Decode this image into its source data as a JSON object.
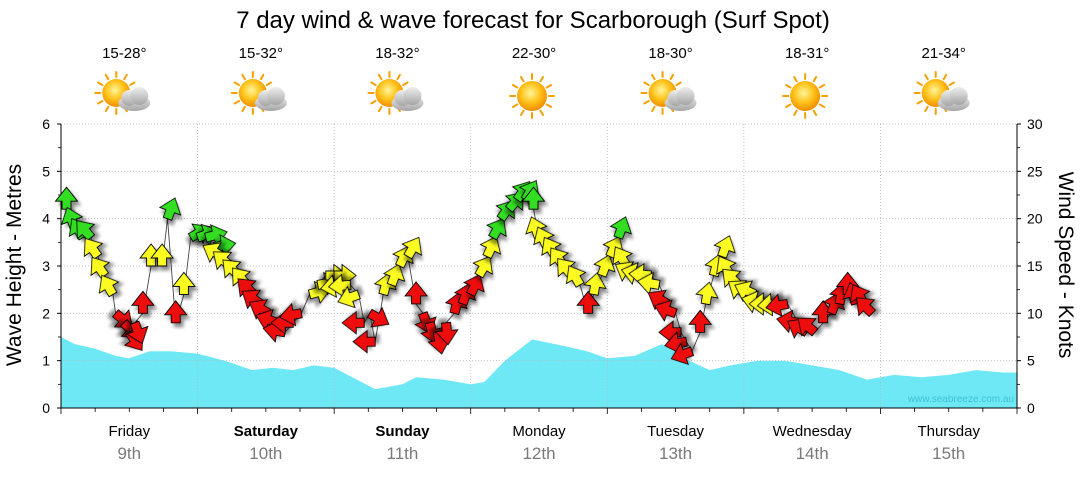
{
  "chart_data": {
    "type": "line",
    "title": "7 day wind & wave forecast for Scarborough (Surf Spot)",
    "y_left_label": "Wave Height - Metres",
    "y_right_label": "Wind Speed - Knots",
    "y_left_range": [
      0,
      6
    ],
    "y_right_range": [
      0,
      30
    ],
    "y_left_ticks": [
      "0",
      "1",
      "2",
      "3",
      "4",
      "5",
      "6"
    ],
    "y_right_ticks": [
      "0",
      "5",
      "10",
      "15",
      "20",
      "25",
      "30"
    ],
    "grid": true,
    "watermark": "www.seabreeze.com.au",
    "days": [
      {
        "day": "Friday",
        "date": "9th",
        "bold": false,
        "temp": "15-28°",
        "weather": "partly-cloudy"
      },
      {
        "day": "Saturday",
        "date": "10th",
        "bold": true,
        "temp": "15-32°",
        "weather": "partly-cloudy"
      },
      {
        "day": "Sunday",
        "date": "11th",
        "bold": true,
        "temp": "18-32°",
        "weather": "partly-cloudy"
      },
      {
        "day": "Monday",
        "date": "12th",
        "bold": false,
        "temp": "22-30°",
        "weather": "sunny"
      },
      {
        "day": "Tuesday",
        "date": "13th",
        "bold": false,
        "temp": "18-30°",
        "weather": "partly-cloudy"
      },
      {
        "day": "Wednesday",
        "date": "14th",
        "bold": false,
        "temp": "18-31°",
        "weather": "sunny"
      },
      {
        "day": "Thursday",
        "date": "15th",
        "bold": false,
        "temp": "21-34°",
        "weather": "partly-cloudy"
      }
    ],
    "wave": {
      "name": "Wave Height",
      "color": "#6fe8f5",
      "t": [
        0,
        0.1,
        0.25,
        0.4,
        0.5,
        0.65,
        0.8,
        1.0,
        1.2,
        1.4,
        1.55,
        1.7,
        1.85,
        2.0,
        2.1,
        2.3,
        2.5,
        2.6,
        2.8,
        3.0,
        3.1,
        3.25,
        3.45,
        3.7,
        3.85,
        4.0,
        4.2,
        4.4,
        4.6,
        4.75,
        4.9,
        5.1,
        5.3,
        5.5,
        5.7,
        5.9,
        6.1,
        6.3,
        6.5,
        6.7,
        6.9,
        7.0
      ],
      "values": [
        1.5,
        1.35,
        1.25,
        1.1,
        1.05,
        1.2,
        1.2,
        1.15,
        1.0,
        0.8,
        0.85,
        0.8,
        0.9,
        0.85,
        0.7,
        0.4,
        0.5,
        0.65,
        0.6,
        0.5,
        0.55,
        1.0,
        1.45,
        1.3,
        1.2,
        1.05,
        1.1,
        1.35,
        1.0,
        0.8,
        0.9,
        1.0,
        1.0,
        0.9,
        0.8,
        0.6,
        0.7,
        0.65,
        0.7,
        0.8,
        0.75,
        0.75
      ]
    },
    "wind": {
      "name": "Wind Speed",
      "colors": {
        "green": "#33dd22",
        "yellow": "#fbfb22",
        "red": "#ee1111"
      },
      "points": [
        {
          "t": 0.04,
          "v": 21,
          "dir": 0,
          "c": "green"
        },
        {
          "t": 0.1,
          "v": 19,
          "dir": -20,
          "c": "green"
        },
        {
          "t": 0.16,
          "v": 18,
          "dir": -30,
          "c": "green"
        },
        {
          "t": 0.22,
          "v": 18,
          "dir": -40,
          "c": "green"
        },
        {
          "t": 0.27,
          "v": 16,
          "dir": -35,
          "c": "yellow"
        },
        {
          "t": 0.32,
          "v": 14,
          "dir": -35,
          "c": "yellow"
        },
        {
          "t": 0.38,
          "v": 12,
          "dir": -30,
          "c": "yellow"
        },
        {
          "t": 0.4,
          "v": 10,
          "dir": 130,
          "c": "red"
        },
        {
          "t": 0.46,
          "v": 9,
          "dir": 135,
          "c": "red"
        },
        {
          "t": 0.5,
          "v": 8,
          "dir": 145,
          "c": "red"
        },
        {
          "t": 0.54,
          "v": 9,
          "dir": 160,
          "c": "red"
        },
        {
          "t": 0.6,
          "v": 10,
          "dir": 0,
          "c": "red"
        },
        {
          "t": 0.66,
          "v": 15,
          "dir": 0,
          "c": "yellow"
        },
        {
          "t": 0.74,
          "v": 15,
          "dir": 0,
          "c": "yellow"
        },
        {
          "t": 0.78,
          "v": 20,
          "dir": 20,
          "c": "green"
        },
        {
          "t": 0.84,
          "v": 9,
          "dir": 0,
          "c": "red"
        },
        {
          "t": 0.9,
          "v": 12,
          "dir": 0,
          "c": "yellow"
        },
        {
          "t": 0.95,
          "v": 18,
          "dir": 60,
          "c": "green"
        },
        {
          "t": 1.0,
          "v": 18,
          "dir": 70,
          "c": "green"
        },
        {
          "t": 1.06,
          "v": 18,
          "dir": 75,
          "c": "green"
        },
        {
          "t": 1.12,
          "v": 17,
          "dir": 80,
          "c": "green"
        },
        {
          "t": 1.18,
          "v": 16,
          "dir": -60,
          "c": "yellow"
        },
        {
          "t": 1.24,
          "v": 15,
          "dir": -50,
          "c": "yellow"
        },
        {
          "t": 1.3,
          "v": 14,
          "dir": -45,
          "c": "yellow"
        },
        {
          "t": 1.36,
          "v": 13,
          "dir": -40,
          "c": "yellow"
        },
        {
          "t": 1.41,
          "v": 12,
          "dir": -45,
          "c": "red"
        },
        {
          "t": 1.46,
          "v": 11,
          "dir": -55,
          "c": "red"
        },
        {
          "t": 1.52,
          "v": 10,
          "dir": -60,
          "c": "red"
        },
        {
          "t": 1.58,
          "v": 9,
          "dir": -70,
          "c": "red"
        },
        {
          "t": 1.64,
          "v": 8,
          "dir": -80,
          "c": "red"
        },
        {
          "t": 1.7,
          "v": 9,
          "dir": -90,
          "c": "red"
        },
        {
          "t": 1.76,
          "v": 10,
          "dir": -100,
          "c": "red"
        },
        {
          "t": 1.82,
          "v": 12,
          "dir": 75,
          "c": "yellow"
        },
        {
          "t": 1.88,
          "v": 13,
          "dir": 80,
          "c": "yellow"
        },
        {
          "t": 1.94,
          "v": 14,
          "dir": 90,
          "c": "yellow"
        },
        {
          "t": 2.0,
          "v": 14,
          "dir": 90,
          "c": "yellow"
        },
        {
          "t": 2.06,
          "v": 13,
          "dir": -100,
          "c": "yellow"
        },
        {
          "t": 2.12,
          "v": 13,
          "dir": -95,
          "c": "yellow"
        },
        {
          "t": 2.18,
          "v": 12,
          "dir": -110,
          "c": "yellow"
        },
        {
          "t": 2.22,
          "v": 9,
          "dir": -90,
          "c": "red"
        },
        {
          "t": 2.26,
          "v": 10,
          "dir": 120,
          "c": "red"
        },
        {
          "t": 2.3,
          "v": 7,
          "dir": -90,
          "c": "red"
        },
        {
          "t": 2.36,
          "v": 12,
          "dir": 15,
          "c": "yellow"
        },
        {
          "t": 2.42,
          "v": 13,
          "dir": 20,
          "c": "yellow"
        },
        {
          "t": 2.48,
          "v": 15,
          "dir": 25,
          "c": "yellow"
        },
        {
          "t": 2.54,
          "v": 16,
          "dir": 30,
          "c": "yellow"
        },
        {
          "t": 2.6,
          "v": 11,
          "dir": 0,
          "c": "red"
        },
        {
          "t": 2.65,
          "v": 10,
          "dir": 160,
          "c": "red"
        },
        {
          "t": 2.7,
          "v": 9,
          "dir": 165,
          "c": "red"
        },
        {
          "t": 2.76,
          "v": 8,
          "dir": 170,
          "c": "red"
        },
        {
          "t": 2.82,
          "v": 9,
          "dir": 175,
          "c": "red"
        },
        {
          "t": 2.88,
          "v": 10,
          "dir": 15,
          "c": "red"
        },
        {
          "t": 2.94,
          "v": 11,
          "dir": 20,
          "c": "red"
        },
        {
          "t": 3.0,
          "v": 12,
          "dir": 25,
          "c": "red"
        },
        {
          "t": 3.06,
          "v": 14,
          "dir": 30,
          "c": "yellow"
        },
        {
          "t": 3.12,
          "v": 16,
          "dir": 25,
          "c": "yellow"
        },
        {
          "t": 3.16,
          "v": 18,
          "dir": 30,
          "c": "green"
        },
        {
          "t": 3.22,
          "v": 20,
          "dir": 35,
          "c": "green"
        },
        {
          "t": 3.28,
          "v": 21,
          "dir": 40,
          "c": "green"
        },
        {
          "t": 3.34,
          "v": 22,
          "dir": 35,
          "c": "green"
        },
        {
          "t": 3.4,
          "v": 22,
          "dir": 30,
          "c": "green"
        },
        {
          "t": 3.46,
          "v": 21,
          "dir": 0,
          "c": "green"
        },
        {
          "t": 3.5,
          "v": 18,
          "dir": -20,
          "c": "yellow"
        },
        {
          "t": 3.56,
          "v": 17,
          "dir": -25,
          "c": "yellow"
        },
        {
          "t": 3.62,
          "v": 16,
          "dir": -30,
          "c": "yellow"
        },
        {
          "t": 3.68,
          "v": 15,
          "dir": -35,
          "c": "yellow"
        },
        {
          "t": 3.74,
          "v": 14,
          "dir": -40,
          "c": "yellow"
        },
        {
          "t": 3.8,
          "v": 13,
          "dir": -30,
          "c": "yellow"
        },
        {
          "t": 3.86,
          "v": 10,
          "dir": 0,
          "c": "red"
        },
        {
          "t": 3.9,
          "v": 12,
          "dir": 10,
          "c": "yellow"
        },
        {
          "t": 3.96,
          "v": 14,
          "dir": 20,
          "c": "yellow"
        },
        {
          "t": 4.02,
          "v": 16,
          "dir": 25,
          "c": "yellow"
        },
        {
          "t": 4.08,
          "v": 18,
          "dir": 20,
          "c": "green"
        },
        {
          "t": 4.14,
          "v": 15,
          "dir": -30,
          "c": "yellow"
        },
        {
          "t": 4.2,
          "v": 14,
          "dir": -60,
          "c": "yellow"
        },
        {
          "t": 4.26,
          "v": 14,
          "dir": -75,
          "c": "yellow"
        },
        {
          "t": 4.32,
          "v": 14,
          "dir": -85,
          "c": "yellow"
        },
        {
          "t": 4.38,
          "v": 13,
          "dir": -80,
          "c": "yellow"
        },
        {
          "t": 4.44,
          "v": 11,
          "dir": -60,
          "c": "red"
        },
        {
          "t": 4.5,
          "v": 10,
          "dir": -70,
          "c": "red"
        },
        {
          "t": 4.54,
          "v": 8,
          "dir": -90,
          "c": "red"
        },
        {
          "t": 4.58,
          "v": 7,
          "dir": -100,
          "c": "red"
        },
        {
          "t": 4.62,
          "v": 6,
          "dir": -110,
          "c": "red"
        },
        {
          "t": 4.68,
          "v": 8,
          "dir": 0,
          "c": "red"
        },
        {
          "t": 4.72,
          "v": 11,
          "dir": 10,
          "c": "yellow"
        },
        {
          "t": 4.78,
          "v": 14,
          "dir": 15,
          "c": "yellow"
        },
        {
          "t": 4.84,
          "v": 16,
          "dir": 20,
          "c": "yellow"
        },
        {
          "t": 4.9,
          "v": 14,
          "dir": -30,
          "c": "yellow"
        },
        {
          "t": 4.96,
          "v": 13,
          "dir": -45,
          "c": "yellow"
        },
        {
          "t": 5.02,
          "v": 12,
          "dir": -55,
          "c": "yellow"
        },
        {
          "t": 5.08,
          "v": 12,
          "dir": -65,
          "c": "yellow"
        },
        {
          "t": 5.14,
          "v": 11,
          "dir": -75,
          "c": "yellow"
        },
        {
          "t": 5.2,
          "v": 11,
          "dir": -90,
          "c": "yellow"
        },
        {
          "t": 5.26,
          "v": 11,
          "dir": -95,
          "c": "yellow"
        },
        {
          "t": 5.32,
          "v": 11,
          "dir": -100,
          "c": "red"
        },
        {
          "t": 5.4,
          "v": 9,
          "dir": -80,
          "c": "red"
        },
        {
          "t": 5.46,
          "v": 8,
          "dir": -60,
          "c": "red"
        },
        {
          "t": 5.52,
          "v": 8,
          "dir": -50,
          "c": "red"
        },
        {
          "t": 5.58,
          "v": 9,
          "dir": 0,
          "c": "red"
        },
        {
          "t": 5.64,
          "v": 10,
          "dir": 20,
          "c": "red"
        },
        {
          "t": 5.7,
          "v": 11,
          "dir": 10,
          "c": "red"
        },
        {
          "t": 5.76,
          "v": 12,
          "dir": 0,
          "c": "red"
        },
        {
          "t": 5.82,
          "v": 11,
          "dir": -15,
          "c": "red"
        },
        {
          "t": 5.88,
          "v": 11,
          "dir": -30,
          "c": "red"
        },
        {
          "t": 5.94,
          "v": 10,
          "dir": -45,
          "c": "red"
        }
      ]
    }
  }
}
